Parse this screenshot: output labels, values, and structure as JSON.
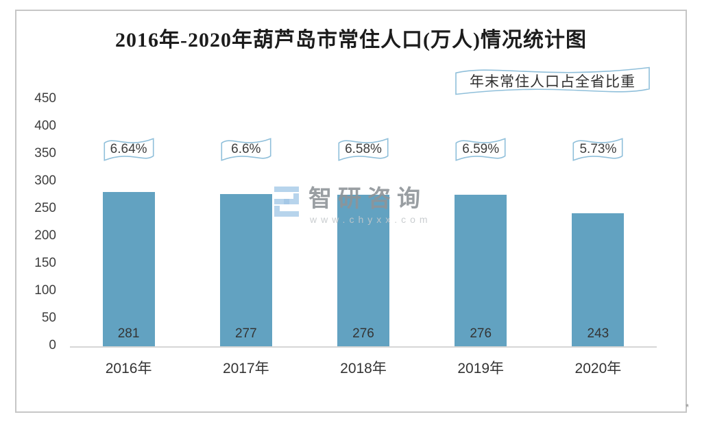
{
  "chart_data": {
    "type": "bar",
    "title": "2016年-2020年葫芦岛市常住人口(万人)情况统计图",
    "categories": [
      "2016年",
      "2017年",
      "2018年",
      "2019年",
      "2020年"
    ],
    "values": [
      281,
      277,
      276,
      276,
      243
    ],
    "percent_labels": [
      "6.64%",
      "6.6%",
      "6.58%",
      "6.59%",
      "5.73%"
    ],
    "legend": "年末常住人口占全省比重",
    "legend_position": "top-right",
    "xlabel": "",
    "ylabel": "",
    "ylim": [
      0,
      450
    ],
    "yticks": [
      0,
      50,
      100,
      150,
      200,
      250,
      300,
      350,
      400,
      450
    ],
    "grid": false,
    "bar_color": "#62a2c1"
  },
  "watermark": {
    "brand": "智研咨询",
    "url": "www.chyxx.com"
  },
  "artifacts": {
    "bottom_right_mark": "*"
  },
  "colors": {
    "bar": "#62a2c1",
    "wave": "#8fbfda",
    "frame": "#c6c6c6",
    "axis": "#d6d6d6",
    "title": "#1c1c1c",
    "text": "#3d3d3d",
    "wmtext": "#8e9499",
    "wmurl": "#c4c8cb",
    "wmlogo": "#b0d0ea"
  }
}
